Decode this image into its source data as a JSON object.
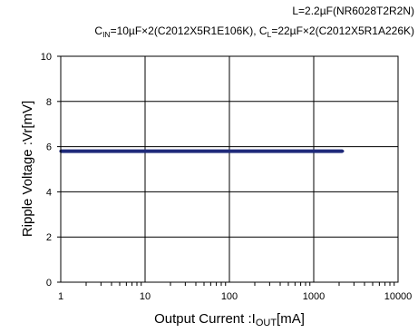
{
  "header": {
    "line1": "L=2.2µF(NR6028T2R2N)",
    "cin_prefix": "C",
    "cin_sub": "IN",
    "cin_rest": "=10µF×2(C2012X5R1E106K), C",
    "cl_sub": "L",
    "cl_rest": "=22µF×2(C2012X5R1A226K)"
  },
  "chart_data": {
    "type": "line",
    "xscale": "log",
    "xlim": [
      1,
      10000
    ],
    "ylim": [
      0,
      10
    ],
    "grid": true,
    "xticks": [
      1,
      10,
      100,
      1000,
      10000
    ],
    "xtick_labels": [
      "1",
      "10",
      "100",
      "1000",
      "10000"
    ],
    "yticks": [
      0,
      2,
      4,
      6,
      8,
      10
    ],
    "ytick_labels": [
      "0",
      "2",
      "4",
      "6",
      "8",
      "10"
    ],
    "xlabel": {
      "main": "Output Current :I",
      "sub": "OUT",
      "unit": "[mA]"
    },
    "ylabel": "Ripple Voltage :Vr[mV]",
    "series": [
      {
        "color": "#1f2a7a",
        "x": [
          1,
          10,
          50,
          100,
          200,
          500,
          1000,
          2200
        ],
        "y": [
          5.8,
          5.8,
          5.8,
          5.8,
          5.8,
          5.8,
          5.8,
          5.8
        ]
      }
    ]
  }
}
